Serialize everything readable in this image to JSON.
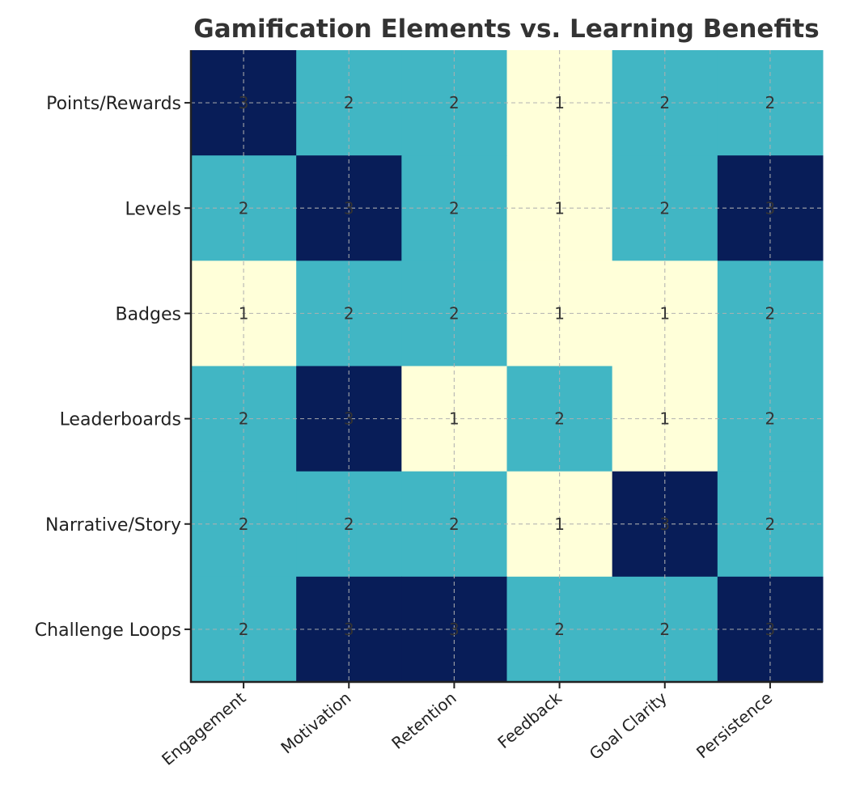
{
  "chart_data": {
    "type": "heatmap",
    "title": "Gamification Elements vs. Learning Benefits",
    "xlabel": "",
    "ylabel": "",
    "columns": [
      "Engagement",
      "Motivation",
      "Retention",
      "Feedback",
      "Goal Clarity",
      "Persistence"
    ],
    "rows": [
      "Points/Rewards",
      "Levels",
      "Badges",
      "Leaderboards",
      "Narrative/Story",
      "Challenge Loops"
    ],
    "values": [
      [
        3,
        2,
        2,
        1,
        2,
        2
      ],
      [
        2,
        3,
        2,
        1,
        2,
        3
      ],
      [
        1,
        2,
        2,
        1,
        1,
        2
      ],
      [
        2,
        3,
        1,
        2,
        1,
        2
      ],
      [
        2,
        2,
        2,
        1,
        3,
        2
      ],
      [
        2,
        3,
        3,
        2,
        2,
        3
      ]
    ],
    "value_range": [
      1,
      3
    ],
    "colors": {
      "1": "#ffffd9",
      "2": "#41b6c4",
      "3": "#081d58"
    },
    "annotation_color": "#333333",
    "title_color": "#333333",
    "grid": true,
    "grid_style": "dashed",
    "grid_color": "#b0b0b0",
    "legend": "none"
  }
}
